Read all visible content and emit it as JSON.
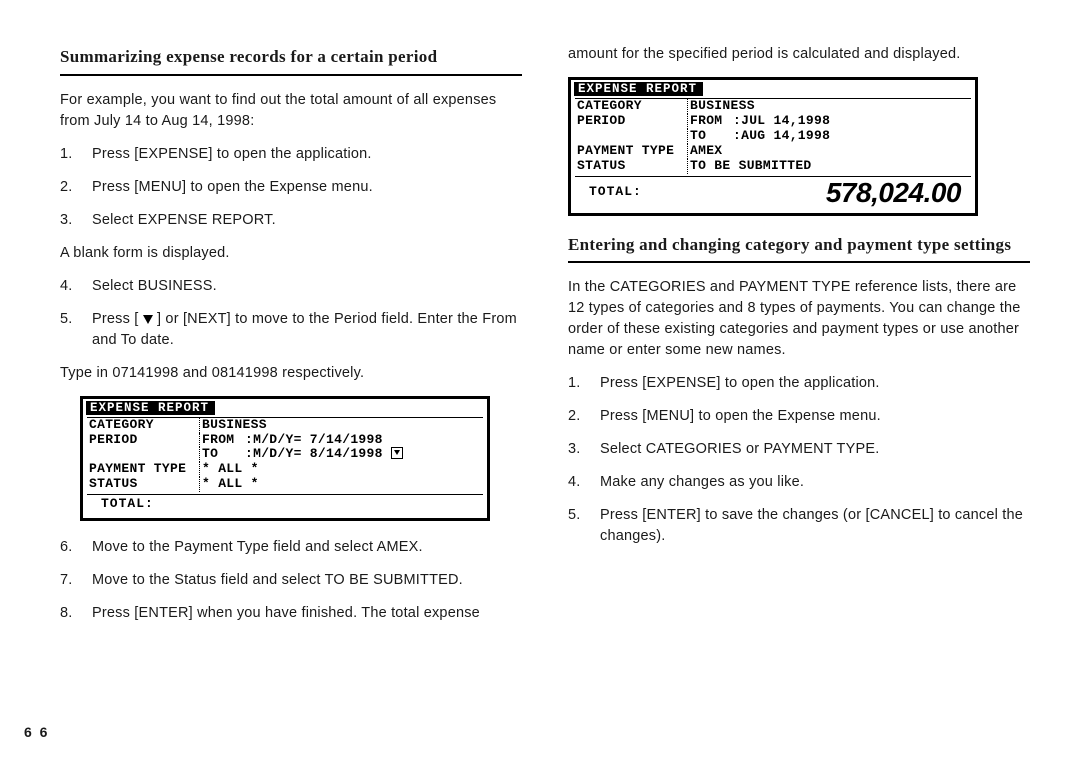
{
  "pageNumber": "6 6",
  "left": {
    "heading": "Summarizing expense records for a certain period",
    "intro": "For example, you want to find out the total amount of all expenses from July 14 to Aug 14, 1998:",
    "step1": "Press [EXPENSE] to open the application.",
    "step2": "Press [MENU] to open the Expense menu.",
    "step3": "Select EXPENSE REPORT.",
    "afterBlank": "A blank form is displayed.",
    "step4": "Select BUSINESS.",
    "step5a": "Press [ ",
    "step5b": " ] or [NEXT] to move to the Period field. Enter the From and To date.",
    "typein": "Type in 07141998 and 08141998 respectively.",
    "step6": "Move to the Payment Type field and select AMEX.",
    "step7": "Move to the Status field and select TO BE SUBMITTED.",
    "step8": "Press [ENTER] when you have finished. The total expense"
  },
  "lcd1": {
    "title": "EXPENSE REPORT",
    "cat_lab": "CATEGORY",
    "cat_val": "BUSINESS",
    "per_lab": "PERIOD",
    "from_lab": "FROM",
    "from_val": ":M/D/Y= 7/14/1998",
    "to_lab": "TO",
    "to_val": ":M/D/Y= 8/14/1998",
    "pay_lab": "PAYMENT TYPE",
    "pay_val": "* ALL *",
    "stat_lab": "STATUS",
    "stat_val": "* ALL *",
    "total_lab": "TOTAL:"
  },
  "right": {
    "cont": "amount for the specified period is calculated and displayed.",
    "heading": "Entering and changing category and payment type settings",
    "intro": "In the CATEGORIES and PAYMENT TYPE reference lists, there are 12 types of categories and 8 types of payments. You can change the order of these existing categories and payment types or use another name or enter some new names.",
    "step1": "Press [EXPENSE] to open the application.",
    "step2": "Press [MENU] to open the Expense menu.",
    "step3": "Select CATEGORIES or PAYMENT TYPE.",
    "step4": "Make any changes as you like.",
    "step5": "Press [ENTER] to save the changes (or [CANCEL] to cancel the changes)."
  },
  "lcd2": {
    "title": "EXPENSE REPORT",
    "cat_lab": "CATEGORY",
    "cat_val": "BUSINESS",
    "per_lab": "PERIOD",
    "from_lab": "FROM",
    "from_val": ":JUL 14,1998",
    "to_lab": "TO",
    "to_val": ":AUG 14,1998",
    "pay_lab": "PAYMENT TYPE",
    "pay_val": "AMEX",
    "stat_lab": "STATUS",
    "stat_val": "TO BE SUBMITTED",
    "total_lab": "TOTAL:",
    "total_val": "578,024.00"
  }
}
